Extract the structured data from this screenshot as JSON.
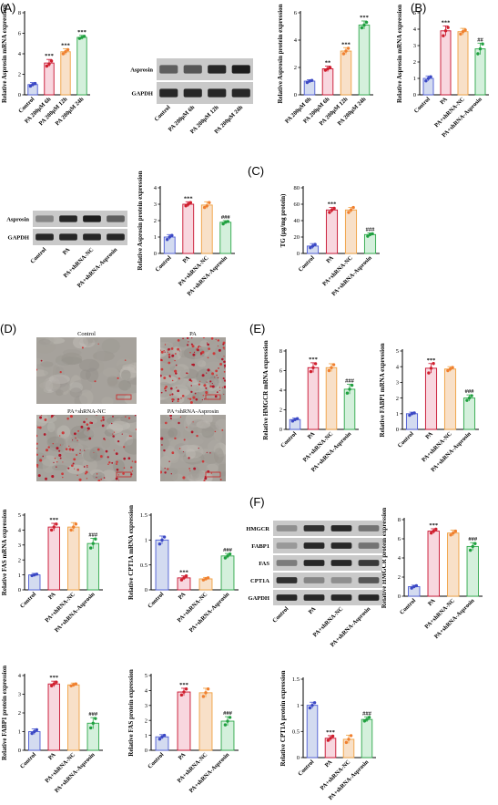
{
  "panel_labels": [
    "(A)",
    "(B)",
    "(C)",
    "(D)",
    "(E)",
    "(F)"
  ],
  "colors": {
    "control": {
      "fill": "#d3dbf0",
      "stroke": "#4c5bd4",
      "dot": "#3b48c4"
    },
    "pa": {
      "fill": "#f8d7df",
      "stroke": "#c8102e",
      "dot": "#d0202e"
    },
    "nc": {
      "fill": "#f8e0c8",
      "stroke": "#f0a040",
      "dot": "#f08030"
    },
    "asp": {
      "fill": "#d4f0dc",
      "stroke": "#2ea84a",
      "dot": "#20a040"
    },
    "scale_bar": "#cc2222"
  },
  "blots": [
    {
      "lanes": [
        "Control",
        "PA 200μM 6h",
        "PA 200μM 12h",
        "PA 200μM 24h"
      ],
      "rows": [
        {
          "label": "Asprosin",
          "intensity": [
            0.55,
            0.6,
            0.85,
            0.9
          ]
        },
        {
          "label": "GAPDH",
          "intensity": [
            0.85,
            0.85,
            0.85,
            0.85
          ]
        }
      ]
    },
    {
      "lanes": [
        "Control",
        "PA",
        "PA+shRNA-NC",
        "PA+shRNA-Asprosin"
      ],
      "rows": [
        {
          "label": "Asprosin",
          "intensity": [
            0.35,
            0.85,
            0.9,
            0.55
          ]
        },
        {
          "label": "GAPDH",
          "intensity": [
            0.85,
            0.85,
            0.85,
            0.85
          ]
        }
      ]
    },
    {
      "lanes": [
        "Control",
        "PA",
        "PA+shRNA-NC",
        "PA+shRNA-Asprosin"
      ],
      "rows": [
        {
          "label": "HMGCR",
          "intensity": [
            0.3,
            0.8,
            0.85,
            0.45
          ]
        },
        {
          "label": "FABP1",
          "intensity": [
            0.25,
            0.85,
            0.85,
            0.45
          ]
        },
        {
          "label": "FAS",
          "intensity": [
            0.4,
            0.85,
            0.85,
            0.75
          ]
        },
        {
          "label": "CPT1A",
          "intensity": [
            0.8,
            0.35,
            0.3,
            0.6
          ]
        },
        {
          "label": "GAPDH",
          "intensity": [
            0.85,
            0.85,
            0.85,
            0.85
          ]
        }
      ]
    }
  ],
  "micrographs": {
    "titles": [
      "Control",
      "PA",
      "PA+shRNA-NC",
      "PA+shRNA-Asprosin"
    ],
    "stain_level": [
      0.05,
      0.85,
      0.8,
      0.25
    ]
  },
  "chart_data": [
    {
      "type": "bar",
      "panel": "A",
      "ylabel": "Relative Asprosin mRNA expression",
      "categories": [
        "Control",
        "PA 200μM 6h",
        "PA 200μM 12h",
        "PA 200μM 24h"
      ],
      "groups": [
        "control",
        "pa",
        "nc",
        "asp"
      ],
      "values": [
        1.0,
        3.1,
        4.2,
        5.6
      ],
      "errors": [
        0.2,
        0.35,
        0.3,
        0.2
      ],
      "points": [
        [
          0.85,
          1.0,
          1.1
        ],
        [
          2.8,
          3.0,
          3.3
        ],
        [
          4.0,
          4.2,
          4.4
        ],
        [
          5.5,
          5.6,
          5.7
        ]
      ],
      "ylim": [
        0,
        8
      ],
      "yticks": [
        0,
        2,
        4,
        6,
        8
      ],
      "annotations": [
        "",
        "***",
        "***",
        "***"
      ]
    },
    {
      "type": "bar",
      "panel": "A",
      "ylabel": "Relative Asprosin protein expression",
      "categories": [
        "PA 200μM 0h",
        "PA 200μM 6h",
        "PA 200μM 12h",
        "PA 200μM 24h"
      ],
      "groups": [
        "control",
        "pa",
        "nc",
        "asp"
      ],
      "values": [
        1.0,
        1.9,
        3.2,
        5.1
      ],
      "errors": [
        0.1,
        0.2,
        0.25,
        0.3
      ],
      "points": [
        [
          0.9,
          1.0,
          1.05
        ],
        [
          1.8,
          1.9,
          2.0
        ],
        [
          3.0,
          3.2,
          3.4
        ],
        [
          4.9,
          5.1,
          5.3
        ]
      ],
      "ylim": [
        0,
        6
      ],
      "yticks": [
        0,
        2,
        4,
        6
      ],
      "annotations": [
        "",
        "**",
        "***",
        "***"
      ]
    },
    {
      "type": "bar",
      "panel": "B",
      "ylabel": "Relative Asprosin mRNA expression",
      "categories": [
        "Control",
        "PA",
        "PA+shRNA-NC",
        "PA+shRNA-Asprosin"
      ],
      "groups": [
        "control",
        "pa",
        "nc",
        "asp"
      ],
      "values": [
        1.0,
        3.9,
        3.85,
        2.8
      ],
      "errors": [
        0.15,
        0.3,
        0.2,
        0.35
      ],
      "points": [
        [
          0.85,
          1.0,
          1.1
        ],
        [
          3.6,
          3.9,
          4.1
        ],
        [
          3.7,
          3.85,
          3.95
        ],
        [
          2.5,
          2.8,
          3.1
        ]
      ],
      "ylim": [
        0,
        5
      ],
      "yticks": [
        0,
        1,
        2,
        3,
        4,
        5
      ],
      "annotations": [
        "",
        "***",
        "",
        "##"
      ]
    },
    {
      "type": "bar",
      "panel": "B",
      "ylabel": "Relative Asprosin protein expression",
      "categories": [
        "Control",
        "PA",
        "PA+shRNA-NC",
        "PA+shRNA-Asprosin"
      ],
      "groups": [
        "control",
        "pa",
        "nc",
        "asp"
      ],
      "values": [
        1.0,
        3.0,
        2.95,
        1.9
      ],
      "errors": [
        0.15,
        0.15,
        0.2,
        0.1
      ],
      "points": [
        [
          0.85,
          1.0,
          1.1
        ],
        [
          2.9,
          3.0,
          3.1
        ],
        [
          2.8,
          2.9,
          3.1
        ],
        [
          1.8,
          1.9,
          1.95
        ]
      ],
      "ylim": [
        0,
        4
      ],
      "yticks": [
        0,
        1,
        2,
        3,
        4
      ],
      "annotations": [
        "",
        "***",
        "",
        "###"
      ]
    },
    {
      "type": "bar",
      "panel": "C",
      "ylabel": "TG (μg/mg protein)",
      "categories": [
        "Control",
        "PA",
        "PA+shRNA-NC",
        "PA+shRNA-Asprosin"
      ],
      "groups": [
        "control",
        "pa",
        "nc",
        "asp"
      ],
      "values": [
        9,
        53,
        53,
        23
      ],
      "errors": [
        3,
        3,
        3,
        2
      ],
      "points": [
        [
          7,
          9,
          11
        ],
        [
          50,
          53,
          55
        ],
        [
          50,
          53,
          56
        ],
        [
          21,
          23,
          24
        ]
      ],
      "ylim": [
        0,
        80
      ],
      "yticks": [
        0,
        20,
        40,
        60,
        80
      ],
      "annotations": [
        "",
        "***",
        "",
        "###"
      ]
    },
    {
      "type": "bar",
      "panel": "E",
      "ylabel": "Relative HMGCR mRNA expression",
      "categories": [
        "Control",
        "PA",
        "PA+shRNA-NC",
        "PA+shRNA-Asprosin"
      ],
      "groups": [
        "control",
        "pa",
        "nc",
        "asp"
      ],
      "values": [
        1.0,
        6.3,
        6.3,
        4.1
      ],
      "errors": [
        0.15,
        0.5,
        0.4,
        0.5
      ],
      "points": [
        [
          0.85,
          1.0,
          1.1
        ],
        [
          5.9,
          6.3,
          6.7
        ],
        [
          6.0,
          6.3,
          6.6
        ],
        [
          3.7,
          4.1,
          4.5
        ]
      ],
      "ylim": [
        0,
        8
      ],
      "yticks": [
        0,
        2,
        4,
        6,
        8
      ],
      "annotations": [
        "",
        "***",
        "",
        "###"
      ]
    },
    {
      "type": "bar",
      "panel": "E",
      "ylabel": "Relative FABP1 mRNA expression",
      "categories": [
        "Control",
        "PA",
        "PA+shRNA-NC",
        "PA+shRNA-Asprosin"
      ],
      "groups": [
        "control",
        "pa",
        "nc",
        "asp"
      ],
      "values": [
        1.0,
        3.9,
        3.85,
        2.0
      ],
      "errors": [
        0.1,
        0.3,
        0.15,
        0.2
      ],
      "points": [
        [
          0.9,
          1.0,
          1.05
        ],
        [
          3.6,
          3.9,
          4.2
        ],
        [
          3.75,
          3.85,
          3.95
        ],
        [
          1.85,
          2.0,
          2.15
        ]
      ],
      "ylim": [
        0,
        5
      ],
      "yticks": [
        0,
        1,
        2,
        3,
        4,
        5
      ],
      "annotations": [
        "",
        "***",
        "",
        "###"
      ]
    },
    {
      "type": "bar",
      "panel": "D",
      "ylabel": "Relative FAS mRNA expression",
      "categories": [
        "Control",
        "PA",
        "PA+shRNA-NC",
        "PA+shRNA-Asprosin"
      ],
      "groups": [
        "control",
        "pa",
        "nc",
        "asp"
      ],
      "values": [
        1.0,
        4.2,
        4.2,
        3.1
      ],
      "errors": [
        0.1,
        0.25,
        0.3,
        0.35
      ],
      "points": [
        [
          0.95,
          1.0,
          1.05
        ],
        [
          4.0,
          4.2,
          4.4
        ],
        [
          4.0,
          4.2,
          4.4
        ],
        [
          2.8,
          3.1,
          3.4
        ]
      ],
      "ylim": [
        0,
        5
      ],
      "yticks": [
        0,
        1,
        2,
        3,
        4,
        5
      ],
      "annotations": [
        "",
        "***",
        "",
        "###"
      ]
    },
    {
      "type": "bar",
      "panel": "D",
      "ylabel": "Relative CPT1A mRNA expression",
      "categories": [
        "Control",
        "PA",
        "PA+shRNA-NC",
        "PA+shRNA-Asprosin"
      ],
      "groups": [
        "control",
        "pa",
        "nc",
        "asp"
      ],
      "values": [
        1.0,
        0.24,
        0.22,
        0.68
      ],
      "errors": [
        0.08,
        0.04,
        0.03,
        0.05
      ],
      "points": [
        [
          0.92,
          1.0,
          1.06
        ],
        [
          0.2,
          0.24,
          0.28
        ],
        [
          0.2,
          0.22,
          0.24
        ],
        [
          0.64,
          0.68,
          0.72
        ]
      ],
      "ylim": [
        0,
        1.5
      ],
      "yticks": [
        0.0,
        0.5,
        1.0,
        1.5
      ],
      "annotations": [
        "",
        "***",
        "",
        "###"
      ]
    },
    {
      "type": "bar",
      "panel": "F",
      "ylabel": "Relative HMGCR protein expression",
      "categories": [
        "Control",
        "PA",
        "PA+shRNA-NC",
        "PA+shRNA-Asprosin"
      ],
      "groups": [
        "control",
        "pa",
        "nc",
        "asp"
      ],
      "values": [
        1.0,
        6.8,
        6.6,
        5.2
      ],
      "errors": [
        0.15,
        0.25,
        0.3,
        0.4
      ],
      "points": [
        [
          0.85,
          1.0,
          1.1
        ],
        [
          6.6,
          6.8,
          7.0
        ],
        [
          6.4,
          6.6,
          6.8
        ],
        [
          4.8,
          5.2,
          5.5
        ]
      ],
      "ylim": [
        0,
        8
      ],
      "yticks": [
        0,
        2,
        4,
        6,
        8
      ],
      "annotations": [
        "",
        "***",
        "",
        "###"
      ]
    },
    {
      "type": "bar",
      "panel": "F",
      "ylabel": "Relative FABP1 protein expression",
      "categories": [
        "Control",
        "PA",
        "PA+shRNA-NC",
        "PA+shRNA-Asprosin"
      ],
      "groups": [
        "control",
        "pa",
        "nc",
        "asp"
      ],
      "values": [
        1.0,
        3.55,
        3.5,
        1.45
      ],
      "errors": [
        0.15,
        0.15,
        0.1,
        0.3
      ],
      "points": [
        [
          0.9,
          1.0,
          1.1
        ],
        [
          3.45,
          3.55,
          3.65
        ],
        [
          3.45,
          3.5,
          3.55
        ],
        [
          1.2,
          1.45,
          1.7
        ]
      ],
      "ylim": [
        0,
        4
      ],
      "yticks": [
        0,
        1,
        2,
        3,
        4
      ],
      "annotations": [
        "",
        "***",
        "",
        "###"
      ]
    },
    {
      "type": "bar",
      "panel": "F",
      "ylabel": "Relative FAS protein expression",
      "categories": [
        "Control",
        "PA",
        "PA+shRNA-NC",
        "PA+shRNA-Asprosin"
      ],
      "groups": [
        "control",
        "pa",
        "nc",
        "asp"
      ],
      "values": [
        0.9,
        3.9,
        3.85,
        1.95
      ],
      "errors": [
        0.15,
        0.25,
        0.3,
        0.3
      ],
      "points": [
        [
          0.75,
          0.9,
          1.0
        ],
        [
          3.7,
          3.9,
          4.1
        ],
        [
          3.6,
          3.85,
          4.1
        ],
        [
          1.7,
          1.95,
          2.2
        ]
      ],
      "ylim": [
        0,
        5
      ],
      "yticks": [
        0,
        1,
        2,
        3,
        4,
        5
      ],
      "annotations": [
        "",
        "***",
        "",
        "###"
      ]
    },
    {
      "type": "bar",
      "panel": "F",
      "ylabel": "Relative CPT1A protein expression",
      "categories": [
        "Control",
        "PA",
        "PA+shRNA-NC",
        "PA+shRNA-Asprosin"
      ],
      "groups": [
        "control",
        "pa",
        "nc",
        "asp"
      ],
      "values": [
        1.0,
        0.37,
        0.35,
        0.73
      ],
      "errors": [
        0.06,
        0.05,
        0.08,
        0.05
      ],
      "points": [
        [
          0.95,
          1.0,
          1.05
        ],
        [
          0.33,
          0.37,
          0.41
        ],
        [
          0.29,
          0.35,
          0.42
        ],
        [
          0.7,
          0.73,
          0.77
        ]
      ],
      "ylim": [
        0,
        1.5
      ],
      "yticks": [
        0.0,
        0.5,
        1.0,
        1.5
      ],
      "annotations": [
        "",
        "***",
        "",
        "###"
      ]
    }
  ]
}
